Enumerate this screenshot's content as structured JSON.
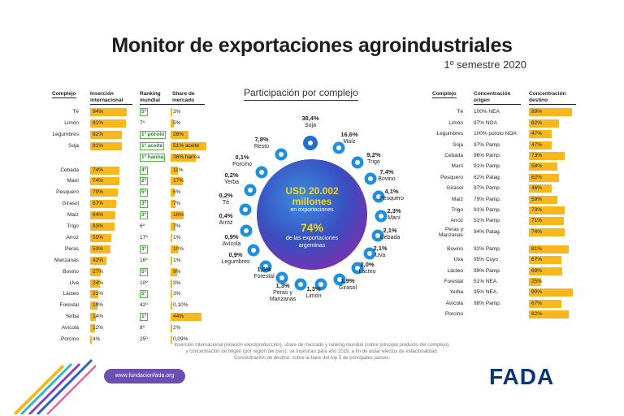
{
  "header": {
    "title": "Monitor de exportaciones agroindustriales",
    "subtitle": "1º semestre 2020"
  },
  "left_table": {
    "headers": [
      "Complejo",
      "Inserción internacional",
      "Ranking mundial",
      "Share de mercado"
    ],
    "rows": [
      {
        "name": "Té",
        "insertion": "94%",
        "rank": "5º",
        "rank_box": true,
        "share": "3%",
        "share_val": 3
      },
      {
        "name": "Limón",
        "insertion": "91%",
        "rank": "7º",
        "rank_box": false,
        "share": "5%",
        "share_val": 5
      },
      {
        "name": "Legumbres",
        "insertion": "82%",
        "rank": "1º poroto",
        "rank_box": true,
        "share": "26%",
        "share_val": 26
      },
      {
        "name": "Soja",
        "insertion": "81%",
        "rank": "1º aceite",
        "rank_box": true,
        "share": "51% aceite",
        "share_val": 51
      },
      {
        "name": "",
        "insertion": "",
        "rank": "1º harina",
        "rank_box": true,
        "share": "36% harina",
        "share_val": 36
      },
      {
        "name": "Cebada",
        "insertion": "74%",
        "rank": "4º",
        "rank_box": true,
        "share": "11%",
        "share_val": 11
      },
      {
        "name": "Maní",
        "insertion": "74%",
        "rank": "2º",
        "rank_box": true,
        "share": "17%",
        "share_val": 17
      },
      {
        "name": "Pesquero",
        "insertion": "70%",
        "rank": "5º",
        "rank_box": true,
        "share": "6%",
        "share_val": 6
      },
      {
        "name": "Girasol",
        "insertion": "67%",
        "rank": "3º",
        "rank_box": true,
        "share": "7%",
        "share_val": 7
      },
      {
        "name": "Maíz",
        "insertion": "64%",
        "rank": "3º",
        "rank_box": true,
        "share": "18%",
        "share_val": 18
      },
      {
        "name": "Trigo",
        "insertion": "63%",
        "rank": "6º",
        "rank_box": false,
        "share": "7%",
        "share_val": 7
      },
      {
        "name": "Arroz",
        "insertion": "55%",
        "rank": "17º",
        "rank_box": false,
        "share": "1%",
        "share_val": 1
      },
      {
        "name": "Peras",
        "insertion": "53%",
        "rank": "3º",
        "rank_box": true,
        "share": "10%",
        "share_val": 10
      },
      {
        "name": "Manzanas",
        "insertion": "42%",
        "rank": "16º",
        "rank_box": false,
        "share": "1%",
        "share_val": 1
      },
      {
        "name": "Bovino",
        "insertion": "27%",
        "rank": "5º",
        "rank_box": true,
        "share": "9%",
        "share_val": 9
      },
      {
        "name": "Uva",
        "insertion": "24%",
        "rank": "10º",
        "rank_box": false,
        "share": "3%",
        "share_val": 3
      },
      {
        "name": "Lácteo",
        "insertion": "21%",
        "rank": "5º",
        "rank_box": true,
        "share": "3%",
        "share_val": 3
      },
      {
        "name": "Forestal",
        "insertion": "19%",
        "rank": "42º",
        "rank_box": false,
        "share": "0,10%",
        "share_val": 0.1
      },
      {
        "name": "Yerba",
        "insertion": "14%",
        "rank": "1º",
        "rank_box": true,
        "share": "44%",
        "share_val": 44
      },
      {
        "name": "Avícola",
        "insertion": "12%",
        "rank": "8º",
        "rank_box": false,
        "share": "2%",
        "share_val": 2
      },
      {
        "name": "Porcino",
        "insertion": "4%",
        "rank": "25º",
        "rank_box": false,
        "share": "0,09%",
        "share_val": 0.09
      }
    ]
  },
  "center": {
    "title": "Participación por complejo",
    "amount": "USD 20.002",
    "amount_unit": "millones",
    "amount_caption": "en exportaciones",
    "percent": "74%",
    "percent_caption_1": "de las exportaciones",
    "percent_caption_2": "argentinas",
    "items": [
      {
        "pct": "38,4%",
        "name": "Soja",
        "icon": "soy-icon"
      },
      {
        "pct": "16,6%",
        "name": "Maíz",
        "icon": "corn-icon"
      },
      {
        "pct": "9,2%",
        "name": "Trigo",
        "icon": "wheat-icon"
      },
      {
        "pct": "7,4%",
        "name": "Bovino",
        "icon": "cow-icon"
      },
      {
        "pct": "4,1%",
        "name": "Pesquero",
        "icon": "fish-icon"
      },
      {
        "pct": "2,3%",
        "name": "Maní",
        "icon": "peanut-icon"
      },
      {
        "pct": "2,1%",
        "name": "Cebada",
        "icon": "barley-icon"
      },
      {
        "pct": "2,1%",
        "name": "Uva",
        "icon": "grape-icon"
      },
      {
        "pct": "2,0%",
        "name": "Lácteo",
        "icon": "milk-icon"
      },
      {
        "pct": "1,9%",
        "name": "Girasol",
        "icon": "sunflower-icon"
      },
      {
        "pct": "1,3%",
        "name": "Limón",
        "icon": "lemon-icon"
      },
      {
        "pct": "1,3%",
        "name": "Peras y Manzanas",
        "icon": "apple-icon"
      },
      {
        "pct": "1,0%",
        "name": "Forestal",
        "icon": "tree-icon"
      },
      {
        "pct": "0,9%",
        "name": "Legumbres",
        "icon": "bean-icon"
      },
      {
        "pct": "0,9%",
        "name": "Avícola",
        "icon": "chicken-icon"
      },
      {
        "pct": "0,4%",
        "name": "Arroz",
        "icon": "rice-icon"
      },
      {
        "pct": "0,2%",
        "name": "Té",
        "icon": "tea-icon"
      },
      {
        "pct": "0,2%",
        "name": "Yerba",
        "icon": "yerba-icon"
      },
      {
        "pct": "0,1%",
        "name": "Porcino",
        "icon": "pig-icon"
      },
      {
        "pct": "7,8%",
        "name": "Resto",
        "icon": "dots-icon"
      }
    ]
  },
  "right_table": {
    "headers": [
      "Complejo",
      "Concentración origen",
      "Concentración destino"
    ],
    "rows": [
      {
        "name": "Té",
        "origin": "100% NEA",
        "dest": "89%",
        "dest_val": 89
      },
      {
        "name": "Limón",
        "origin": "97% NOA",
        "dest": "62%",
        "dest_val": 62
      },
      {
        "name": "Legumbres",
        "origin": "100% poroto NOA",
        "dest": "47%",
        "dest_val": 47
      },
      {
        "name": "Soja",
        "origin": "97% Pamp.",
        "dest": "47%",
        "dest_val": 47
      },
      {
        "name": "Cebada",
        "origin": "96% Pamp.",
        "dest": "73%",
        "dest_val": 73
      },
      {
        "name": "Maní",
        "origin": "91% Pamp.",
        "dest": "58%",
        "dest_val": 58
      },
      {
        "name": "Pesquero",
        "origin": "62% Patag.",
        "dest": "62%",
        "dest_val": 62
      },
      {
        "name": "Girasol",
        "origin": "97% Pamp.",
        "dest": "46%",
        "dest_val": 46
      },
      {
        "name": "Maíz",
        "origin": "79% Pamp.",
        "dest": "59%",
        "dest_val": 59
      },
      {
        "name": "Trigo",
        "origin": "91% Pamp.",
        "dest": "73%",
        "dest_val": 73
      },
      {
        "name": "Arroz",
        "origin": "51% Pamp.",
        "dest": "71%",
        "dest_val": 71
      },
      {
        "name": "Peras y Manzanas",
        "origin": "94% Patag.",
        "dest": "74%",
        "dest_val": 74
      },
      {
        "name": "Bovino",
        "origin": "92% Pamp.",
        "dest": "81%",
        "dest_val": 81
      },
      {
        "name": "Uva",
        "origin": "95% Cuyo",
        "dest": "67%",
        "dest_val": 67
      },
      {
        "name": "Lácteo",
        "origin": "99% Pamp.",
        "dest": "69%",
        "dest_val": 69
      },
      {
        "name": "Forestal",
        "origin": "51% NEA.",
        "dest": "25%",
        "dest_val": 25
      },
      {
        "name": "Yerba",
        "origin": "95% NEA.",
        "dest": "90%",
        "dest_val": 90
      },
      {
        "name": "Avícola",
        "origin": "98% Pamp.",
        "dest": "67%",
        "dest_val": 67
      },
      {
        "name": "Porcino",
        "origin": "",
        "dest": "82%",
        "dest_val": 82
      }
    ]
  },
  "footer": {
    "note_1": "Inserción internacional (relación expo/producción), share de mercado y ranking mundial (sobre principal producto del complejo),",
    "note_2": "y concentración de origen (por región del país): se muestran para año 2019, a fin de aislar efectos de estacionalidad.",
    "note_3": "Concentración de destino: sobre la base del top 5 de principales países.",
    "url": "www.fundacionfada.org",
    "logo": "FADA"
  },
  "colors": {
    "bar": "#f8b71d",
    "rank_border": "#5ab14a",
    "bubble": "#2a5fc4",
    "circle_icon": "#1f6fcf",
    "logo": "#0a3577"
  },
  "chart_data": {
    "type": "table",
    "title": "Monitor de exportaciones agroindustriales",
    "subtitle": "1º semestre 2020",
    "participation_by_complex": {
      "categories": [
        "Soja",
        "Maíz",
        "Trigo",
        "Bovino",
        "Pesquero",
        "Maní",
        "Cebada",
        "Uva",
        "Lácteo",
        "Girasol",
        "Limón",
        "Peras y Manzanas",
        "Forestal",
        "Legumbres",
        "Avícola",
        "Arroz",
        "Té",
        "Yerba",
        "Porcino",
        "Resto"
      ],
      "values": [
        38.4,
        16.6,
        9.2,
        7.4,
        4.1,
        2.3,
        2.1,
        2.1,
        2.0,
        1.9,
        1.3,
        1.3,
        1.0,
        0.9,
        0.9,
        0.4,
        0.2,
        0.2,
        0.1,
        7.8
      ]
    },
    "international_insertion": {
      "categories": [
        "Té",
        "Limón",
        "Legumbres",
        "Soja",
        "Cebada",
        "Maní",
        "Pesquero",
        "Girasol",
        "Maíz",
        "Trigo",
        "Arroz",
        "Peras",
        "Manzanas",
        "Bovino",
        "Uva",
        "Lácteo",
        "Forestal",
        "Yerba",
        "Avícola",
        "Porcino"
      ],
      "values": [
        94,
        91,
        82,
        81,
        74,
        74,
        70,
        67,
        64,
        63,
        55,
        53,
        42,
        27,
        24,
        21,
        19,
        14,
        12,
        4
      ]
    },
    "destination_concentration": {
      "categories": [
        "Té",
        "Limón",
        "Legumbres",
        "Soja",
        "Cebada",
        "Maní",
        "Pesquero",
        "Girasol",
        "Maíz",
        "Trigo",
        "Arroz",
        "Peras y Manzanas",
        "Bovino",
        "Uva",
        "Lácteo",
        "Forestal",
        "Yerba",
        "Avícola",
        "Porcino"
      ],
      "values": [
        89,
        62,
        47,
        47,
        73,
        58,
        62,
        46,
        59,
        73,
        71,
        74,
        81,
        67,
        69,
        25,
        90,
        67,
        82
      ]
    }
  }
}
